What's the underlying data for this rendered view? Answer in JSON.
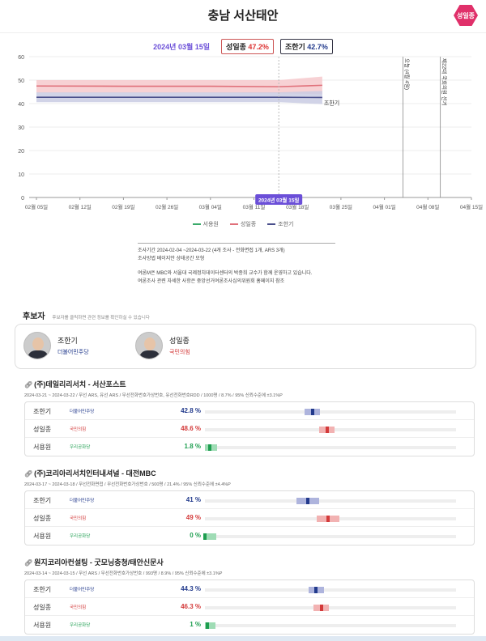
{
  "title": "충남 서산태안",
  "badge": "성일종",
  "header": {
    "date": "2024년 03월 15일",
    "c1_name": "성일종",
    "c1_value": "47.2%",
    "c2_name": "조한기",
    "c2_value": "42.7%"
  },
  "chart_data": {
    "type": "line",
    "ylim": [
      0,
      60
    ],
    "yticks": [
      0,
      10,
      20,
      30,
      40,
      50,
      60
    ],
    "xticks": [
      "02월 05일",
      "02월 12일",
      "02월 19일",
      "02월 26일",
      "03월 04일",
      "03월 11일",
      "03월 18일",
      "03월 25일",
      "04월 01일",
      "04월 08일",
      "04월 15일"
    ],
    "tooltip_date": "2024년 03월 15일",
    "end_label": "조한기",
    "events": [
      {
        "label": "오늘 (4월 4일)",
        "x_date": "2024-04-04"
      },
      {
        "label": "제22대 국회의원 선거",
        "x_date": "2024-04-10"
      }
    ],
    "series": [
      {
        "name": "성일종",
        "color": "#e0707a",
        "band": "#f6c9cc",
        "x": [
          "2024-02-05",
          "2024-02-19",
          "2024-03-04",
          "2024-03-15",
          "2024-03-22"
        ],
        "values": [
          47.5,
          47.4,
          47.4,
          47.2,
          47.8
        ],
        "lower": [
          44.6,
          44.6,
          44.6,
          44.4,
          44.0
        ],
        "upper": [
          50.0,
          50.0,
          50.0,
          50.0,
          51.5
        ]
      },
      {
        "name": "조한기",
        "color": "#4a4f8c",
        "band": "#c9cbe3",
        "x": [
          "2024-02-05",
          "2024-02-19",
          "2024-03-04",
          "2024-03-15",
          "2024-03-22"
        ],
        "values": [
          42.7,
          42.7,
          42.7,
          42.7,
          42.6
        ],
        "lower": [
          40.6,
          40.6,
          40.6,
          40.6,
          39.8
        ],
        "upper": [
          44.8,
          44.8,
          44.8,
          44.8,
          45.4
        ]
      },
      {
        "name": "서용원",
        "color": "#3aaa6a",
        "band": "#cfe9d9",
        "x": [],
        "values": []
      }
    ]
  },
  "legend": [
    {
      "name": "서용원",
      "color": "#3aaa6a"
    },
    {
      "name": "성일종",
      "color": "#e0707a"
    },
    {
      "name": "조한기",
      "color": "#4a4f8c"
    }
  ],
  "notes": {
    "l1": "조사기간 2024-02-04 ~2024-03-22 (4개 조사 - 전화면접 1개, ARS 3개)",
    "l2": "조사방법 베이지안 상태공간 모형",
    "l3": "여론M은 MBC와 서울대 국제정치데이터센터의 박종희 교수가 함께 운영하고 있습니다.",
    "l4": "여론조사 관련 자세한 사항은 중앙선거여론조사심의위원회 홈페이지 참조"
  },
  "candidates_section": {
    "title": "후보자",
    "subtitle": "후보자를 클릭하면 관련 정보를 확인하실 수 있습니다",
    "list": [
      {
        "name": "조한기",
        "party": "더불어민주당",
        "party_color": "#223a8c"
      },
      {
        "name": "성일종",
        "party": "국민의힘",
        "party_color": "#d33a3a"
      }
    ]
  },
  "polls": [
    {
      "title": "(주)데일리리서치 - 서산포스트",
      "meta": "2024-03-21 ~ 2024-03-22 / 무선 ARS, 유선 ARS / 무선전화번호가상번호, 유선전화번호RDD / 1000명 / 8.7% / 95% 신뢰수준에 ±3.1%P",
      "rows": [
        {
          "name": "조한기",
          "party": "더불어민주당",
          "value": "42.8 %",
          "num": 42.8,
          "lo": 39.7,
          "hi": 45.9
        },
        {
          "name": "성일종",
          "party": "국민의힘",
          "value": "48.6 %",
          "num": 48.6,
          "lo": 45.5,
          "hi": 51.7
        },
        {
          "name": "서용원",
          "party": "우리공화당",
          "value": "1.8 %",
          "num": 1.8,
          "lo": 0,
          "hi": 4.9
        }
      ]
    },
    {
      "title": "(주)코리아리서치인터내셔널 - 대전MBC",
      "meta": "2024-03-17 ~ 2024-03-18 / 무선전화면접 / 무선전화번호가상번호 / 500명 / 21.4% / 95% 신뢰수준에 ±4.4%P",
      "rows": [
        {
          "name": "조한기",
          "party": "더불어민주당",
          "value": "41 %",
          "num": 41,
          "lo": 36.6,
          "hi": 45.4
        },
        {
          "name": "성일종",
          "party": "국민의힘",
          "value": "49 %",
          "num": 49,
          "lo": 44.6,
          "hi": 53.4
        },
        {
          "name": "서용원",
          "party": "우리공화당",
          "value": "0 %",
          "num": 0,
          "lo": 0,
          "hi": 4.4
        }
      ]
    },
    {
      "title": "원지코리아컨설팅 - 굿모닝충청/태안신문사",
      "meta": "2024-03-14 ~ 2024-03-15 / 무선 ARS / 무선전화번호가상번호 / 993명 / 8.9% / 95% 신뢰수준에 ±3.1%P",
      "rows": [
        {
          "name": "조한기",
          "party": "더불어민주당",
          "value": "44.3 %",
          "num": 44.3,
          "lo": 41.2,
          "hi": 47.4
        },
        {
          "name": "성일종",
          "party": "국민의힘",
          "value": "46.3 %",
          "num": 46.3,
          "lo": 43.2,
          "hi": 49.4
        },
        {
          "name": "서용원",
          "party": "우리공화당",
          "value": "1 %",
          "num": 1,
          "lo": 0,
          "hi": 4.1
        }
      ]
    }
  ],
  "colors": {
    "dem": "#223a8c",
    "ppp": "#d33a3a",
    "rep": "#1e9e50"
  }
}
